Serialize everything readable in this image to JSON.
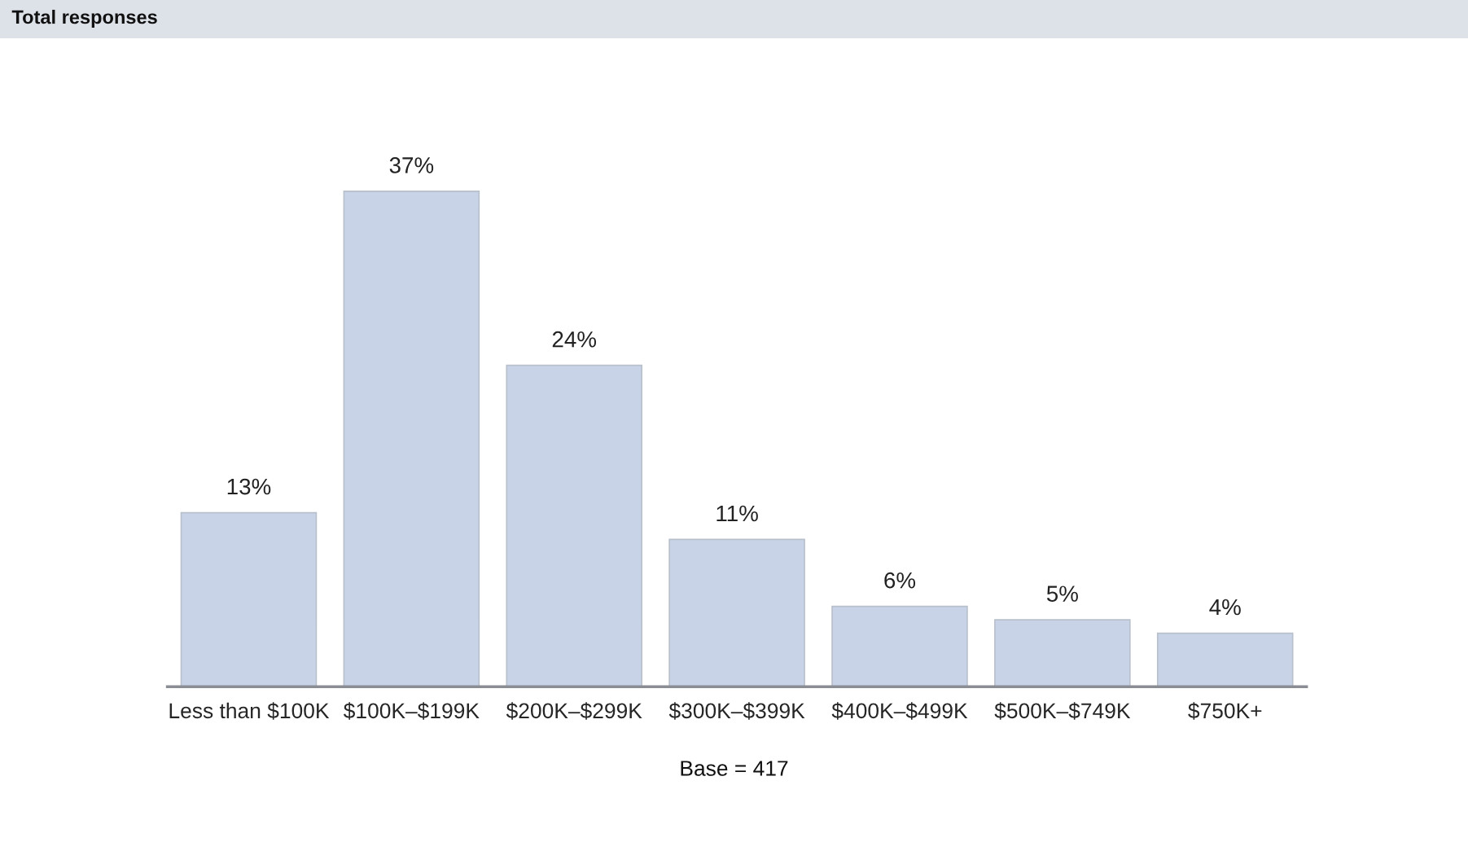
{
  "chart_data": {
    "type": "bar",
    "title": "Total responses",
    "categories": [
      "Less than $100K",
      "$100K–$199K",
      "$200K–$299K",
      "$300K–$399K",
      "$400K–$499K",
      "$500K–$749K",
      "$750K+"
    ],
    "values": [
      13,
      37,
      24,
      11,
      6,
      5,
      4
    ],
    "value_labels": [
      "13%",
      "37%",
      "24%",
      "11%",
      "6%",
      "5%",
      "4%"
    ],
    "color": "#c8d3e8",
    "annotations": [
      "Base = 417"
    ],
    "grid": false,
    "legend": false
  }
}
